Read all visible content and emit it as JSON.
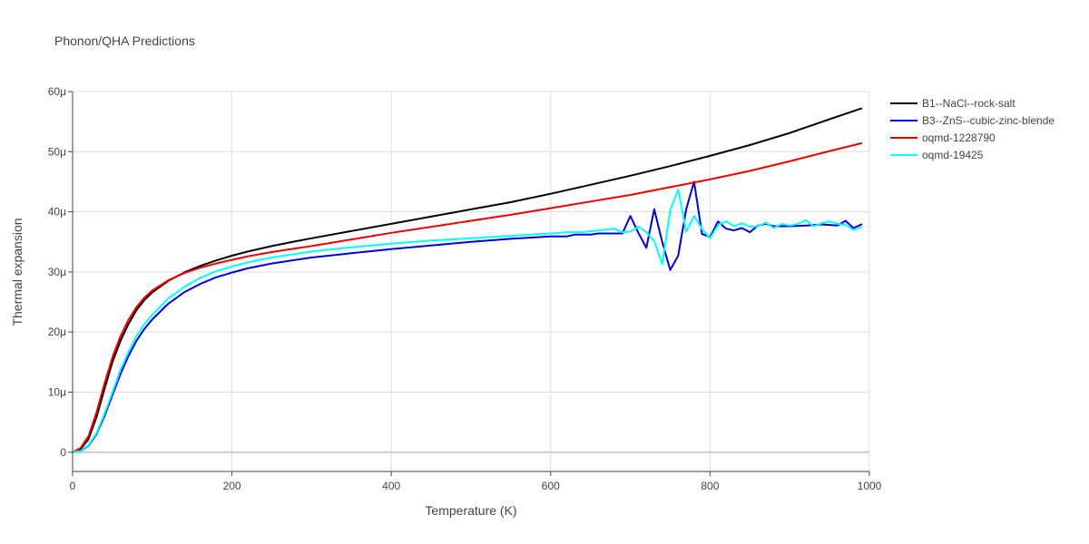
{
  "chart_data": {
    "type": "line",
    "title": "Phonon/QHA Predictions",
    "xlabel": "Temperature (K)",
    "ylabel": "Thermal expansion",
    "xlim": [
      0,
      1000
    ],
    "ylim": [
      -3.2e-06,
      6e-05
    ],
    "xticks": [
      0,
      200,
      400,
      600,
      800,
      1000
    ],
    "xtick_labels": [
      "0",
      "200",
      "400",
      "600",
      "800",
      "1000"
    ],
    "yticks": [
      0,
      1e-05,
      2e-05,
      3e-05,
      4e-05,
      5e-05,
      6e-05
    ],
    "ytick_labels": [
      "0",
      "10μ",
      "20μ",
      "30μ",
      "40μ",
      "50μ",
      "60μ"
    ],
    "grid": true,
    "legend_position": "top-right",
    "series": [
      {
        "name": "B1--NaCl--rock-salt",
        "color": "#000000",
        "x": [
          0,
          10,
          20,
          30,
          40,
          50,
          60,
          70,
          80,
          90,
          100,
          120,
          140,
          160,
          180,
          200,
          220,
          250,
          280,
          300,
          350,
          400,
          450,
          500,
          550,
          600,
          650,
          700,
          750,
          800,
          850,
          900,
          950,
          990
        ],
        "y": [
          0,
          5e-07,
          2.2e-06,
          5.8e-06,
          1.05e-05,
          1.5e-05,
          1.85e-05,
          2.13e-05,
          2.36e-05,
          2.53e-05,
          2.66e-05,
          2.85e-05,
          2.99e-05,
          3.1e-05,
          3.19e-05,
          3.27e-05,
          3.34e-05,
          3.43e-05,
          3.51e-05,
          3.56e-05,
          3.68e-05,
          3.8e-05,
          3.92e-05,
          4.04e-05,
          4.16e-05,
          4.3e-05,
          4.45e-05,
          4.6e-05,
          4.76e-05,
          4.93e-05,
          5.11e-05,
          5.31e-05,
          5.54e-05,
          5.72e-05
        ]
      },
      {
        "name": "B3--ZnS--cubic-zinc-blende",
        "color": "#0000dd",
        "x": [
          0,
          10,
          20,
          30,
          40,
          50,
          60,
          70,
          80,
          90,
          100,
          120,
          140,
          160,
          180,
          200,
          220,
          250,
          280,
          300,
          350,
          400,
          450,
          500,
          550,
          600,
          620,
          630,
          650,
          660,
          680,
          690,
          700,
          710,
          720,
          730,
          740,
          750,
          760,
          770,
          780,
          790,
          800,
          810,
          820,
          830,
          840,
          850,
          860,
          870,
          880,
          890,
          900,
          920,
          940,
          960,
          970,
          980,
          990
        ],
        "y": [
          0,
          2e-07,
          1.1e-06,
          3e-06,
          6e-06,
          9.5e-06,
          1.3e-05,
          1.6e-05,
          1.85e-05,
          2.05e-05,
          2.21e-05,
          2.47e-05,
          2.66e-05,
          2.8e-05,
          2.91e-05,
          2.99e-05,
          3.06e-05,
          3.14e-05,
          3.2e-05,
          3.24e-05,
          3.31e-05,
          3.38e-05,
          3.44e-05,
          3.5e-05,
          3.55e-05,
          3.59e-05,
          3.59e-05,
          3.62e-05,
          3.62e-05,
          3.64e-05,
          3.64e-05,
          3.64e-05,
          3.93e-05,
          3.65e-05,
          3.4e-05,
          4.04e-05,
          3.5e-05,
          3.03e-05,
          3.27e-05,
          4.04e-05,
          4.5e-05,
          3.63e-05,
          3.58e-05,
          3.84e-05,
          3.72e-05,
          3.69e-05,
          3.73e-05,
          3.66e-05,
          3.77e-05,
          3.8e-05,
          3.76e-05,
          3.76e-05,
          3.76e-05,
          3.77e-05,
          3.79e-05,
          3.77e-05,
          3.85e-05,
          3.73e-05,
          3.79e-05
        ]
      },
      {
        "name": "oqmd-1228790",
        "color": "#ee0000",
        "x": [
          0,
          10,
          20,
          30,
          40,
          50,
          60,
          70,
          80,
          90,
          100,
          120,
          140,
          160,
          180,
          200,
          220,
          250,
          280,
          300,
          350,
          400,
          450,
          500,
          550,
          600,
          650,
          700,
          750,
          800,
          850,
          900,
          950,
          990
        ],
        "y": [
          0,
          7e-07,
          2.7e-06,
          6.6e-06,
          1.14e-05,
          1.58e-05,
          1.93e-05,
          2.2e-05,
          2.41e-05,
          2.57e-05,
          2.69e-05,
          2.86e-05,
          2.98e-05,
          3.07e-05,
          3.14e-05,
          3.2e-05,
          3.26e-05,
          3.33e-05,
          3.39e-05,
          3.43e-05,
          3.54e-05,
          3.65e-05,
          3.75e-05,
          3.85e-05,
          3.95e-05,
          4.06e-05,
          4.17e-05,
          4.28e-05,
          4.41e-05,
          4.54e-05,
          4.68e-05,
          4.84e-05,
          5.01e-05,
          5.14e-05
        ]
      },
      {
        "name": "oqmd-19425",
        "color": "#00ffff",
        "x": [
          0,
          10,
          20,
          30,
          40,
          50,
          60,
          70,
          80,
          90,
          100,
          120,
          140,
          160,
          180,
          200,
          220,
          250,
          280,
          300,
          350,
          400,
          450,
          500,
          550,
          600,
          620,
          640,
          660,
          680,
          690,
          700,
          710,
          720,
          730,
          740,
          750,
          760,
          770,
          780,
          790,
          800,
          810,
          820,
          830,
          840,
          850,
          860,
          870,
          880,
          890,
          900,
          910,
          920,
          930,
          940,
          950,
          960,
          970,
          980,
          990
        ],
        "y": [
          0,
          2e-07,
          1.2e-06,
          3.2e-06,
          6.4e-06,
          1e-05,
          1.37e-05,
          1.67e-05,
          1.93e-05,
          2.13e-05,
          2.29e-05,
          2.56e-05,
          2.75e-05,
          2.9e-05,
          3.01e-05,
          3.09e-05,
          3.16e-05,
          3.24e-05,
          3.3e-05,
          3.34e-05,
          3.41e-05,
          3.47e-05,
          3.52e-05,
          3.56e-05,
          3.6e-05,
          3.64e-05,
          3.66e-05,
          3.66e-05,
          3.69e-05,
          3.72e-05,
          3.66e-05,
          3.67e-05,
          3.75e-05,
          3.66e-05,
          3.51e-05,
          3.13e-05,
          4.03e-05,
          4.37e-05,
          3.67e-05,
          3.93e-05,
          3.71e-05,
          3.56e-05,
          3.78e-05,
          3.84e-05,
          3.76e-05,
          3.81e-05,
          3.75e-05,
          3.76e-05,
          3.82e-05,
          3.73e-05,
          3.8e-05,
          3.77e-05,
          3.8e-05,
          3.86e-05,
          3.76e-05,
          3.81e-05,
          3.84e-05,
          3.8e-05,
          3.78e-05,
          3.7e-05,
          3.75e-05
        ]
      }
    ]
  }
}
